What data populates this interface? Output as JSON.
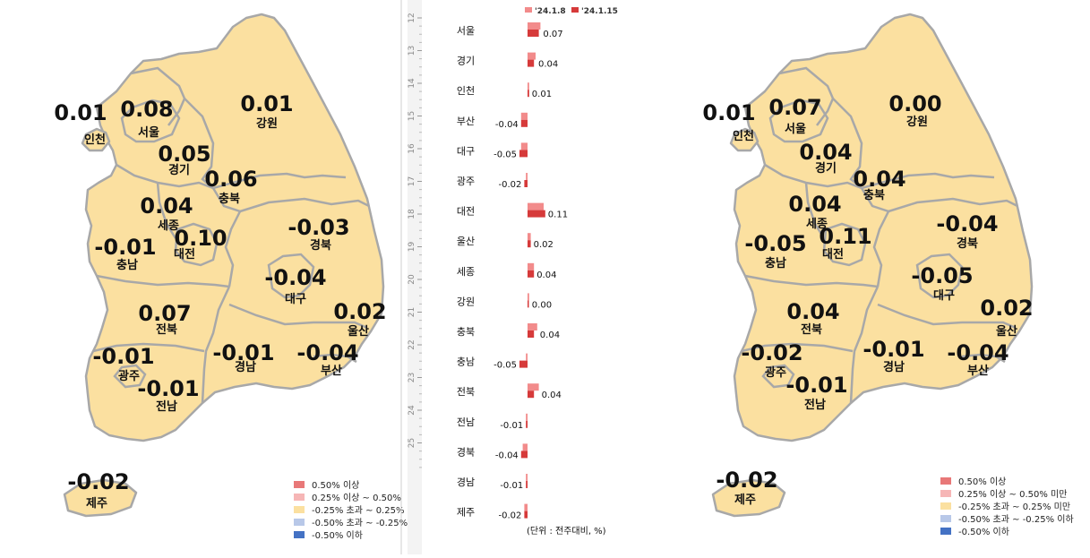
{
  "colors": {
    "land": "#fbe0a0",
    "border": "#a8a8a8",
    "prev_bar": "#f28b8b",
    "curr_bar": "#d63a3a",
    "legend": [
      "#e87878",
      "#f6b6b6",
      "#fbe0a0",
      "#b8c8e8",
      "#4472c4"
    ]
  },
  "left_map": {
    "regions": [
      {
        "name": "인천",
        "value": "0.01"
      },
      {
        "name": "서울",
        "value": "0.08"
      },
      {
        "name": "경기",
        "value": "0.05"
      },
      {
        "name": "강원",
        "value": "0.01"
      },
      {
        "name": "충북",
        "value": "0.06"
      },
      {
        "name": "세종",
        "value": "0.04"
      },
      {
        "name": "대전",
        "value": "0.10"
      },
      {
        "name": "충남",
        "value": "-0.01"
      },
      {
        "name": "경북",
        "value": "-0.03"
      },
      {
        "name": "대구",
        "value": "-0.04"
      },
      {
        "name": "울산",
        "value": "0.02"
      },
      {
        "name": "전북",
        "value": "0.07"
      },
      {
        "name": "광주",
        "value": "-0.01"
      },
      {
        "name": "전남",
        "value": "-0.01"
      },
      {
        "name": "경남",
        "value": "-0.01"
      },
      {
        "name": "부산",
        "value": "-0.04"
      },
      {
        "name": "제주",
        "value": "-0.02"
      }
    ],
    "legend": [
      "0.50% 이상",
      "0.25% 이상 ~ 0.50%",
      "-0.25% 초과 ~ 0.25%",
      "-0.50% 초과 ~ -0.25%",
      "-0.50% 이하"
    ]
  },
  "right_map": {
    "regions": [
      {
        "name": "인천",
        "value": "0.01"
      },
      {
        "name": "서울",
        "value": "0.07"
      },
      {
        "name": "경기",
        "value": "0.04"
      },
      {
        "name": "강원",
        "value": "0.00"
      },
      {
        "name": "충북",
        "value": "0.04"
      },
      {
        "name": "세종",
        "value": "0.04"
      },
      {
        "name": "대전",
        "value": "0.11"
      },
      {
        "name": "충남",
        "value": "-0.05"
      },
      {
        "name": "경북",
        "value": "-0.04"
      },
      {
        "name": "대구",
        "value": "-0.05"
      },
      {
        "name": "울산",
        "value": "0.02"
      },
      {
        "name": "전북",
        "value": "0.04"
      },
      {
        "name": "광주",
        "value": "-0.02"
      },
      {
        "name": "전남",
        "value": "-0.01"
      },
      {
        "name": "경남",
        "value": "-0.01"
      },
      {
        "name": "부산",
        "value": "-0.04"
      },
      {
        "name": "제주",
        "value": "-0.02"
      }
    ],
    "legend": [
      "0.50% 이상",
      "0.25% 이상 ~ 0.50% 미만",
      "-0.25% 초과 ~ 0.25% 미만",
      "-0.50% 초과 ~ -0.25% 이하",
      "-0.50% 이하"
    ]
  },
  "ruler_ticks": [
    "12",
    "13",
    "14",
    "15",
    "16",
    "17",
    "18",
    "19",
    "20",
    "21",
    "22",
    "23",
    "24",
    "25"
  ],
  "chart_data": {
    "type": "bar",
    "orientation": "horizontal",
    "categories": [
      "서울",
      "경기",
      "인천",
      "부산",
      "대구",
      "광주",
      "대전",
      "울산",
      "세종",
      "강원",
      "충북",
      "충남",
      "전북",
      "전남",
      "경북",
      "경남",
      "제주"
    ],
    "series": [
      {
        "name": "'24.1.8",
        "values": [
          0.08,
          0.05,
          0.01,
          -0.04,
          -0.04,
          -0.01,
          0.1,
          0.02,
          0.04,
          0.01,
          0.06,
          -0.01,
          0.07,
          -0.01,
          -0.03,
          -0.01,
          -0.02
        ]
      },
      {
        "name": "'24.1.15",
        "values": [
          0.07,
          0.04,
          0.01,
          -0.04,
          -0.05,
          -0.02,
          0.11,
          0.02,
          0.04,
          0.0,
          0.04,
          -0.05,
          0.04,
          -0.01,
          -0.04,
          -0.01,
          -0.02
        ]
      }
    ],
    "data_labels": [
      "0.07",
      "0.04",
      "0.01",
      "-0.04",
      "-0.05",
      "-0.02",
      "0.11",
      "0.02",
      "0.04",
      "0.00",
      "0.04",
      "-0.05",
      "0.04",
      "-0.01",
      "-0.04",
      "-0.01",
      "-0.02"
    ],
    "unit_note": "(단위 : 전주대비, %)",
    "xlim": [
      -0.06,
      0.12
    ]
  }
}
